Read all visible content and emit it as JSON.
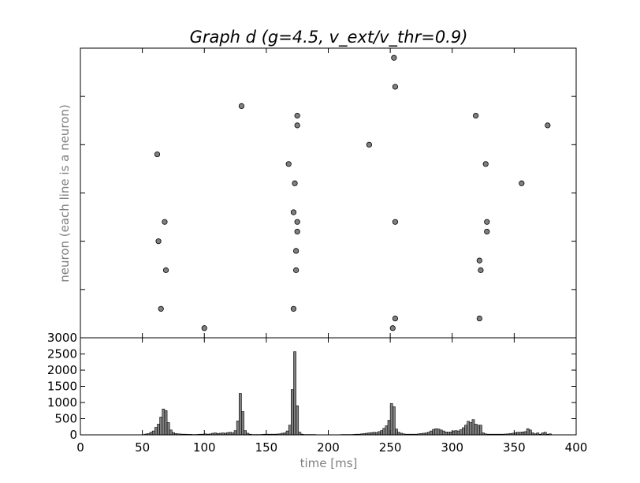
{
  "chart_data": [
    {
      "type": "scatter",
      "title": "Graph d (g=4.5, v_ext/v_thr=0.9)",
      "ylabel": "neuron (each line is a neuron)",
      "xlim": [
        0,
        400
      ],
      "ylim": [
        0,
        30
      ],
      "grid": false,
      "marker_color": "#808080",
      "points": [
        {
          "x": 100,
          "y": 1
        },
        {
          "x": 252,
          "y": 1
        },
        {
          "x": 65,
          "y": 3
        },
        {
          "x": 172,
          "y": 3
        },
        {
          "x": 254,
          "y": 2
        },
        {
          "x": 322,
          "y": 2
        },
        {
          "x": 69,
          "y": 7
        },
        {
          "x": 174,
          "y": 7
        },
        {
          "x": 323,
          "y": 7
        },
        {
          "x": 322,
          "y": 8
        },
        {
          "x": 174,
          "y": 9
        },
        {
          "x": 63,
          "y": 10
        },
        {
          "x": 175,
          "y": 11
        },
        {
          "x": 328,
          "y": 11
        },
        {
          "x": 68,
          "y": 12
        },
        {
          "x": 175,
          "y": 12
        },
        {
          "x": 254,
          "y": 12
        },
        {
          "x": 328,
          "y": 12
        },
        {
          "x": 172,
          "y": 13
        },
        {
          "x": 173,
          "y": 16
        },
        {
          "x": 356,
          "y": 16
        },
        {
          "x": 168,
          "y": 18
        },
        {
          "x": 327,
          "y": 18
        },
        {
          "x": 62,
          "y": 19
        },
        {
          "x": 233,
          "y": 20
        },
        {
          "x": 175,
          "y": 22
        },
        {
          "x": 377,
          "y": 22
        },
        {
          "x": 175,
          "y": 23
        },
        {
          "x": 319,
          "y": 23
        },
        {
          "x": 130,
          "y": 24
        },
        {
          "x": 254,
          "y": 26
        },
        {
          "x": 253,
          "y": 29
        }
      ]
    },
    {
      "type": "bar",
      "xlabel": "time [ms]",
      "xlim": [
        0,
        400
      ],
      "ylim": [
        0,
        3000
      ],
      "x_ticks": [
        "0",
        "50",
        "100",
        "150",
        "200",
        "250",
        "300",
        "350",
        "400"
      ],
      "y_ticks": [
        "0",
        "500",
        "1000",
        "1500",
        "2000",
        "2500",
        "3000"
      ],
      "bin_width": 2,
      "bar_color": "#808080",
      "bins": [
        {
          "x": 50,
          "v": 10
        },
        {
          "x": 52,
          "v": 25
        },
        {
          "x": 54,
          "v": 40
        },
        {
          "x": 56,
          "v": 80
        },
        {
          "x": 58,
          "v": 120
        },
        {
          "x": 60,
          "v": 230
        },
        {
          "x": 62,
          "v": 330
        },
        {
          "x": 64,
          "v": 550
        },
        {
          "x": 66,
          "v": 800
        },
        {
          "x": 68,
          "v": 750
        },
        {
          "x": 70,
          "v": 380
        },
        {
          "x": 72,
          "v": 150
        },
        {
          "x": 74,
          "v": 70
        },
        {
          "x": 76,
          "v": 40
        },
        {
          "x": 78,
          "v": 30
        },
        {
          "x": 80,
          "v": 25
        },
        {
          "x": 82,
          "v": 20
        },
        {
          "x": 84,
          "v": 20
        },
        {
          "x": 86,
          "v": 15
        },
        {
          "x": 88,
          "v": 15
        },
        {
          "x": 90,
          "v": 10
        },
        {
          "x": 92,
          "v": 10
        },
        {
          "x": 94,
          "v": 15
        },
        {
          "x": 96,
          "v": 20
        },
        {
          "x": 98,
          "v": 20
        },
        {
          "x": 100,
          "v": 30
        },
        {
          "x": 102,
          "v": 20
        },
        {
          "x": 104,
          "v": 30
        },
        {
          "x": 106,
          "v": 50
        },
        {
          "x": 108,
          "v": 60
        },
        {
          "x": 110,
          "v": 40
        },
        {
          "x": 112,
          "v": 50
        },
        {
          "x": 114,
          "v": 60
        },
        {
          "x": 116,
          "v": 50
        },
        {
          "x": 118,
          "v": 70
        },
        {
          "x": 120,
          "v": 80
        },
        {
          "x": 122,
          "v": 60
        },
        {
          "x": 124,
          "v": 130
        },
        {
          "x": 126,
          "v": 430
        },
        {
          "x": 128,
          "v": 1280
        },
        {
          "x": 130,
          "v": 720
        },
        {
          "x": 132,
          "v": 130
        },
        {
          "x": 134,
          "v": 50
        },
        {
          "x": 136,
          "v": 20
        },
        {
          "x": 138,
          "v": 10
        },
        {
          "x": 140,
          "v": 10
        },
        {
          "x": 142,
          "v": 10
        },
        {
          "x": 144,
          "v": 10
        },
        {
          "x": 146,
          "v": 15
        },
        {
          "x": 148,
          "v": 20
        },
        {
          "x": 150,
          "v": 20
        },
        {
          "x": 152,
          "v": 20
        },
        {
          "x": 154,
          "v": 20
        },
        {
          "x": 156,
          "v": 20
        },
        {
          "x": 158,
          "v": 25
        },
        {
          "x": 160,
          "v": 30
        },
        {
          "x": 162,
          "v": 50
        },
        {
          "x": 164,
          "v": 60
        },
        {
          "x": 166,
          "v": 120
        },
        {
          "x": 168,
          "v": 300
        },
        {
          "x": 170,
          "v": 1400
        },
        {
          "x": 172,
          "v": 2570
        },
        {
          "x": 174,
          "v": 900
        },
        {
          "x": 176,
          "v": 80
        },
        {
          "x": 178,
          "v": 20
        },
        {
          "x": 180,
          "v": 10
        },
        {
          "x": 182,
          "v": 10
        },
        {
          "x": 184,
          "v": 10
        },
        {
          "x": 186,
          "v": 10
        },
        {
          "x": 188,
          "v": 10
        },
        {
          "x": 190,
          "v": 5
        },
        {
          "x": 192,
          "v": 5
        },
        {
          "x": 194,
          "v": 5
        },
        {
          "x": 196,
          "v": 5
        },
        {
          "x": 198,
          "v": 5
        },
        {
          "x": 200,
          "v": 5
        },
        {
          "x": 202,
          "v": 5
        },
        {
          "x": 204,
          "v": 5
        },
        {
          "x": 206,
          "v": 5
        },
        {
          "x": 208,
          "v": 5
        },
        {
          "x": 210,
          "v": 10
        },
        {
          "x": 212,
          "v": 10
        },
        {
          "x": 214,
          "v": 10
        },
        {
          "x": 216,
          "v": 10
        },
        {
          "x": 218,
          "v": 10
        },
        {
          "x": 220,
          "v": 15
        },
        {
          "x": 222,
          "v": 20
        },
        {
          "x": 224,
          "v": 20
        },
        {
          "x": 226,
          "v": 30
        },
        {
          "x": 228,
          "v": 40
        },
        {
          "x": 230,
          "v": 50
        },
        {
          "x": 232,
          "v": 60
        },
        {
          "x": 234,
          "v": 70
        },
        {
          "x": 236,
          "v": 80
        },
        {
          "x": 238,
          "v": 70
        },
        {
          "x": 240,
          "v": 100
        },
        {
          "x": 242,
          "v": 130
        },
        {
          "x": 244,
          "v": 200
        },
        {
          "x": 246,
          "v": 280
        },
        {
          "x": 248,
          "v": 450
        },
        {
          "x": 250,
          "v": 970
        },
        {
          "x": 252,
          "v": 870
        },
        {
          "x": 254,
          "v": 180
        },
        {
          "x": 256,
          "v": 80
        },
        {
          "x": 258,
          "v": 50
        },
        {
          "x": 260,
          "v": 30
        },
        {
          "x": 262,
          "v": 20
        },
        {
          "x": 264,
          "v": 20
        },
        {
          "x": 266,
          "v": 20
        },
        {
          "x": 268,
          "v": 20
        },
        {
          "x": 270,
          "v": 20
        },
        {
          "x": 272,
          "v": 30
        },
        {
          "x": 274,
          "v": 40
        },
        {
          "x": 276,
          "v": 50
        },
        {
          "x": 278,
          "v": 60
        },
        {
          "x": 280,
          "v": 80
        },
        {
          "x": 282,
          "v": 120
        },
        {
          "x": 284,
          "v": 170
        },
        {
          "x": 286,
          "v": 190
        },
        {
          "x": 288,
          "v": 180
        },
        {
          "x": 290,
          "v": 150
        },
        {
          "x": 292,
          "v": 120
        },
        {
          "x": 294,
          "v": 90
        },
        {
          "x": 296,
          "v": 80
        },
        {
          "x": 298,
          "v": 90
        },
        {
          "x": 300,
          "v": 120
        },
        {
          "x": 302,
          "v": 130
        },
        {
          "x": 304,
          "v": 120
        },
        {
          "x": 306,
          "v": 160
        },
        {
          "x": 308,
          "v": 220
        },
        {
          "x": 310,
          "v": 300
        },
        {
          "x": 312,
          "v": 420
        },
        {
          "x": 314,
          "v": 380
        },
        {
          "x": 316,
          "v": 470
        },
        {
          "x": 318,
          "v": 330
        },
        {
          "x": 320,
          "v": 300
        },
        {
          "x": 322,
          "v": 300
        },
        {
          "x": 324,
          "v": 60
        },
        {
          "x": 326,
          "v": 30
        },
        {
          "x": 328,
          "v": 20
        },
        {
          "x": 330,
          "v": 20
        },
        {
          "x": 332,
          "v": 20
        },
        {
          "x": 334,
          "v": 20
        },
        {
          "x": 336,
          "v": 20
        },
        {
          "x": 338,
          "v": 20
        },
        {
          "x": 340,
          "v": 20
        },
        {
          "x": 342,
          "v": 25
        },
        {
          "x": 344,
          "v": 30
        },
        {
          "x": 346,
          "v": 40
        },
        {
          "x": 348,
          "v": 50
        },
        {
          "x": 350,
          "v": 70
        },
        {
          "x": 352,
          "v": 80
        },
        {
          "x": 354,
          "v": 80
        },
        {
          "x": 356,
          "v": 90
        },
        {
          "x": 358,
          "v": 100
        },
        {
          "x": 360,
          "v": 190
        },
        {
          "x": 362,
          "v": 150
        },
        {
          "x": 364,
          "v": 60
        },
        {
          "x": 366,
          "v": 30
        },
        {
          "x": 368,
          "v": 60
        },
        {
          "x": 370,
          "v": 20
        },
        {
          "x": 372,
          "v": 60
        },
        {
          "x": 374,
          "v": 80
        },
        {
          "x": 376,
          "v": 20
        },
        {
          "x": 378,
          "v": 30
        }
      ]
    }
  ]
}
